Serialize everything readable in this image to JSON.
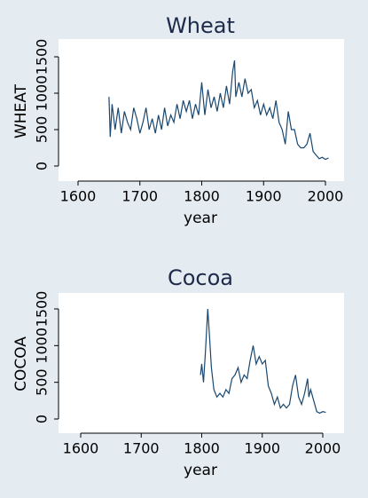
{
  "chart_data": [
    {
      "type": "line",
      "title": "Wheat",
      "x_label": "year",
      "y_label": "WHEAT",
      "xlim": [
        1600,
        2000
      ],
      "xticks": [
        1600,
        1700,
        1800,
        1900,
        2000
      ],
      "ylim": [
        0,
        1500
      ],
      "yticks": [
        0,
        500,
        1000,
        1500
      ],
      "color": "#1a476f",
      "x": [
        1650,
        1652,
        1655,
        1660,
        1665,
        1670,
        1675,
        1680,
        1685,
        1690,
        1695,
        1700,
        1705,
        1710,
        1715,
        1720,
        1725,
        1730,
        1735,
        1740,
        1745,
        1750,
        1755,
        1760,
        1765,
        1770,
        1775,
        1780,
        1785,
        1790,
        1795,
        1800,
        1805,
        1810,
        1815,
        1820,
        1825,
        1830,
        1835,
        1840,
        1845,
        1850,
        1853,
        1855,
        1860,
        1865,
        1870,
        1875,
        1880,
        1885,
        1890,
        1895,
        1900,
        1905,
        1910,
        1915,
        1920,
        1925,
        1930,
        1935,
        1940,
        1945,
        1950,
        1955,
        1960,
        1965,
        1970,
        1975,
        1980,
        1985,
        1990,
        1995,
        2000,
        2005
      ],
      "values": [
        950,
        400,
        850,
        500,
        800,
        450,
        750,
        600,
        500,
        800,
        650,
        450,
        600,
        800,
        500,
        650,
        450,
        700,
        500,
        800,
        550,
        700,
        600,
        850,
        650,
        900,
        750,
        900,
        650,
        850,
        700,
        1150,
        700,
        1050,
        800,
        950,
        750,
        1000,
        800,
        1100,
        850,
        1300,
        1450,
        950,
        1150,
        950,
        1200,
        1000,
        1050,
        800,
        900,
        700,
        850,
        700,
        800,
        650,
        900,
        600,
        500,
        300,
        750,
        500,
        500,
        300,
        250,
        250,
        300,
        450,
        200,
        150,
        100,
        120,
        90,
        110
      ]
    },
    {
      "type": "line",
      "title": "Cocoa",
      "x_label": "year",
      "y_label": "COCOA",
      "xlim": [
        1600,
        2000
      ],
      "xticks": [
        1600,
        1700,
        1800,
        1900,
        2000
      ],
      "ylim": [
        0,
        1500
      ],
      "yticks": [
        0,
        500,
        1000,
        1500
      ],
      "color": "#1a476f",
      "x": [
        1798,
        1800,
        1803,
        1806,
        1810,
        1813,
        1816,
        1820,
        1825,
        1830,
        1835,
        1840,
        1845,
        1850,
        1855,
        1860,
        1865,
        1870,
        1875,
        1880,
        1885,
        1890,
        1895,
        1900,
        1905,
        1910,
        1915,
        1920,
        1925,
        1930,
        1935,
        1940,
        1945,
        1950,
        1955,
        1960,
        1965,
        1970,
        1975,
        1977,
        1980,
        1985,
        1990,
        1995,
        2000,
        2005
      ],
      "values": [
        600,
        750,
        500,
        900,
        1500,
        1100,
        700,
        400,
        300,
        350,
        300,
        400,
        350,
        550,
        600,
        700,
        500,
        600,
        550,
        800,
        1000,
        750,
        850,
        750,
        800,
        450,
        350,
        200,
        300,
        150,
        200,
        150,
        200,
        450,
        600,
        300,
        200,
        350,
        550,
        300,
        400,
        250,
        100,
        80,
        100,
        90
      ]
    }
  ]
}
